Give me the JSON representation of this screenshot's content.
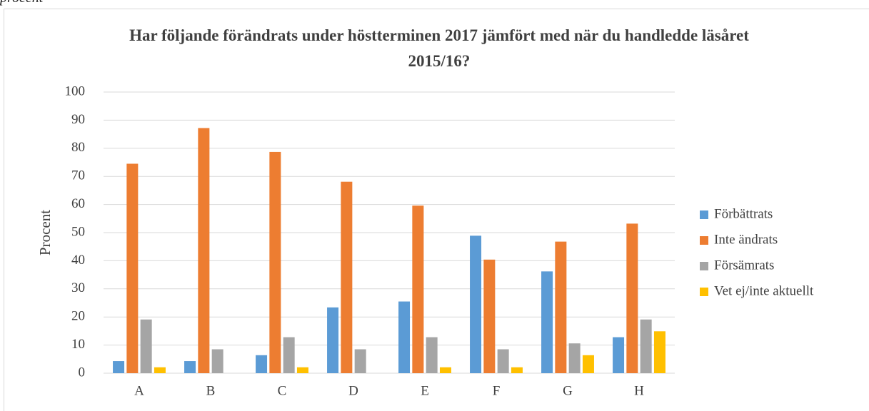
{
  "caption": "procent",
  "chart_data": {
    "type": "bar",
    "title": "Har följande förändrats under höstterminen 2017 jämfört med när du handledde läsåret 2015/16?",
    "y_label": "Procent",
    "categories": [
      "A",
      "B",
      "C",
      "D",
      "E",
      "F",
      "G",
      "H"
    ],
    "series": [
      {
        "name": "Förbättrats",
        "color": "#5b9bd5",
        "values": [
          4.3,
          4.3,
          6.4,
          23.4,
          25.5,
          48.9,
          36.2,
          12.8
        ]
      },
      {
        "name": "Inte ändrats",
        "color": "#ed7d31",
        "values": [
          74.5,
          87.2,
          78.7,
          68.1,
          59.6,
          40.4,
          46.8,
          53.2
        ]
      },
      {
        "name": "Försämrats",
        "color": "#a5a5a5",
        "values": [
          19.1,
          8.5,
          12.8,
          8.5,
          12.8,
          8.5,
          10.6,
          19.1
        ]
      },
      {
        "name": "Vet ej/inte aktuellt",
        "color": "#ffc000",
        "values": [
          2.1,
          0,
          2.1,
          0,
          2.1,
          2.1,
          6.4,
          14.9
        ]
      }
    ],
    "ylim": [
      0,
      100
    ],
    "yticks": [
      0,
      10,
      20,
      30,
      40,
      50,
      60,
      70,
      80,
      90,
      100
    ],
    "grid": true,
    "legend": "right"
  }
}
